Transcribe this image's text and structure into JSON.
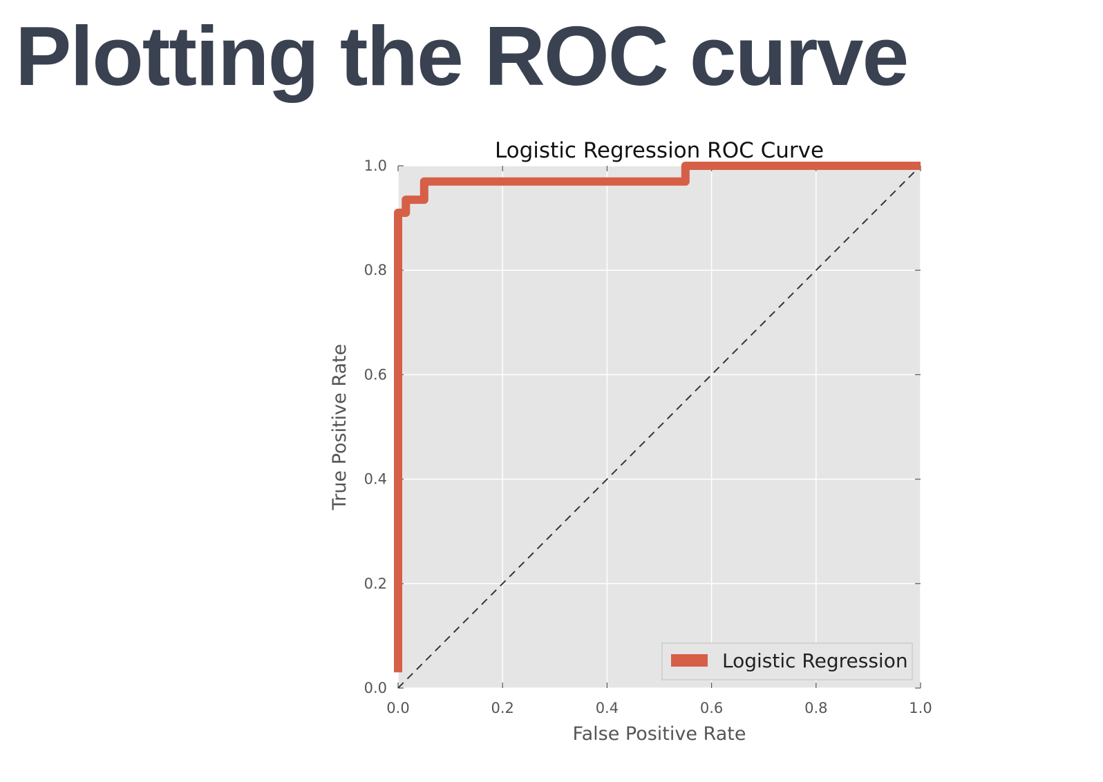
{
  "slide": {
    "title": "Plotting the ROC curve"
  },
  "colors": {
    "series": "#d65f48",
    "plot_bg": "#e5e5e5",
    "grid": "#ffffff",
    "diagonal": "#333333",
    "title_text": "#3a4150"
  },
  "chart_data": {
    "type": "line",
    "title": "Logistic Regression ROC Curve",
    "xlabel": "False Positive Rate",
    "ylabel": "True Positive Rate",
    "xlim": [
      0.0,
      1.0
    ],
    "ylim": [
      0.0,
      1.0
    ],
    "xticks": [
      "0.0",
      "0.2",
      "0.4",
      "0.6",
      "0.8",
      "1.0"
    ],
    "yticks": [
      "0.0",
      "0.2",
      "0.4",
      "0.6",
      "0.8",
      "1.0"
    ],
    "grid": true,
    "legend_position": "lower right",
    "series": [
      {
        "name": "Logistic Regression",
        "style": "solid",
        "x": [
          0.0,
          0.0,
          0.0,
          0.015,
          0.015,
          0.05,
          0.05,
          0.55,
          0.55,
          1.0
        ],
        "y": [
          0.03,
          0.9,
          0.91,
          0.91,
          0.935,
          0.935,
          0.97,
          0.97,
          1.0,
          1.0
        ]
      },
      {
        "style": "dashed",
        "x": [
          0.0,
          1.0
        ],
        "y": [
          0.0,
          1.0
        ]
      }
    ]
  }
}
